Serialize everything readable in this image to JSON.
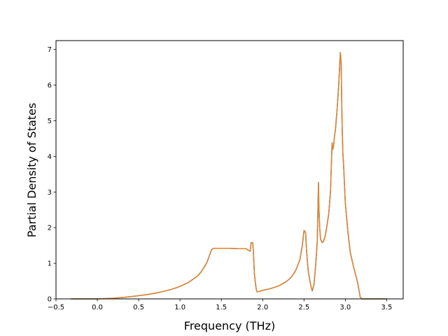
{
  "chart_data": {
    "type": "line",
    "title": "",
    "xlabel": "Frequency (THz)",
    "ylabel": "Partial Density of States",
    "xlim": [
      -0.5,
      3.7
    ],
    "ylim": [
      0,
      7.25
    ],
    "xticks": [
      -0.5,
      0.0,
      0.5,
      1.0,
      1.5,
      2.0,
      2.5,
      3.0,
      3.5
    ],
    "xtick_labels": [
      "−0.5",
      "0.0",
      "0.5",
      "1.0",
      "1.5",
      "2.0",
      "2.5",
      "3.0",
      "3.5"
    ],
    "yticks": [
      0,
      1,
      2,
      3,
      4,
      5,
      6,
      7
    ],
    "ytick_labels": [
      "0",
      "1",
      "2",
      "3",
      "4",
      "5",
      "6",
      "7"
    ],
    "grid": false,
    "legend": "none",
    "series": [
      {
        "color": "#e5822a",
        "underlay_color": "#1f77b4",
        "x": [
          -0.32,
          0.0,
          0.1,
          0.2,
          0.3,
          0.4,
          0.5,
          0.6,
          0.7,
          0.8,
          0.9,
          1.0,
          1.1,
          1.2,
          1.25,
          1.3,
          1.33,
          1.36,
          1.38,
          1.4,
          1.5,
          1.6,
          1.7,
          1.8,
          1.83,
          1.85,
          1.86,
          1.875,
          1.88,
          1.89,
          1.9,
          1.92,
          1.93,
          1.95,
          2.0,
          2.1,
          2.2,
          2.3,
          2.35,
          2.4,
          2.45,
          2.48,
          2.5,
          2.51,
          2.52,
          2.53,
          2.55,
          2.58,
          2.6,
          2.62,
          2.64,
          2.66,
          2.675,
          2.68,
          2.69,
          2.7,
          2.72,
          2.74,
          2.76,
          2.78,
          2.8,
          2.82,
          2.84,
          2.85,
          2.86,
          2.87,
          2.88,
          2.9,
          2.92,
          2.94,
          2.95,
          2.96,
          2.97,
          2.98,
          3.0,
          3.03,
          3.06,
          3.1,
          3.15,
          3.18,
          3.2,
          3.3,
          3.5
        ],
        "y": [
          0.0,
          0.0,
          0.01,
          0.02,
          0.04,
          0.06,
          0.09,
          0.12,
          0.16,
          0.21,
          0.27,
          0.35,
          0.46,
          0.62,
          0.74,
          0.92,
          1.05,
          1.24,
          1.37,
          1.42,
          1.42,
          1.42,
          1.41,
          1.41,
          1.36,
          1.34,
          1.58,
          1.58,
          1.57,
          1.25,
          0.7,
          0.3,
          0.2,
          0.2,
          0.24,
          0.29,
          0.37,
          0.51,
          0.62,
          0.8,
          1.1,
          1.5,
          1.92,
          1.9,
          1.85,
          1.4,
          0.8,
          0.4,
          0.22,
          0.4,
          0.9,
          1.6,
          3.27,
          2.6,
          2.0,
          1.68,
          1.58,
          1.63,
          1.8,
          2.1,
          2.4,
          3.0,
          4.38,
          4.2,
          4.35,
          4.6,
          4.75,
          5.3,
          6.0,
          6.92,
          6.6,
          5.0,
          4.1,
          3.7,
          2.7,
          1.9,
          1.3,
          0.9,
          0.45,
          0.05,
          0.0,
          0.0,
          0.0
        ]
      }
    ]
  }
}
